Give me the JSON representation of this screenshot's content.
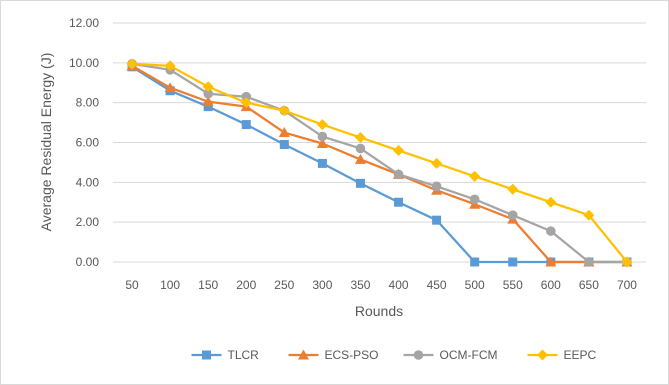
{
  "chart_data": {
    "type": "line",
    "title": "",
    "xlabel": "Rounds",
    "ylabel": "Average Residual Energy (J)",
    "categories": [
      "50",
      "100",
      "150",
      "200",
      "250",
      "300",
      "350",
      "400",
      "450",
      "500",
      "550",
      "600",
      "650",
      "700"
    ],
    "y_ticks": [
      "0.00",
      "2.00",
      "4.00",
      "6.00",
      "8.00",
      "10.00",
      "12.00"
    ],
    "ylim": [
      0,
      12
    ],
    "grid": true,
    "legend_position": "bottom",
    "series": [
      {
        "name": "TLCR",
        "color": "#5b9bd5",
        "marker": "square",
        "values": [
          9.8,
          8.6,
          7.8,
          6.9,
          5.9,
          4.95,
          3.95,
          3.0,
          2.1,
          0.0,
          0.0,
          0.0,
          0.0,
          0.0
        ]
      },
      {
        "name": "ECS-PSO",
        "color": "#ed7d31",
        "marker": "triangle",
        "values": [
          9.85,
          8.75,
          8.05,
          7.8,
          6.5,
          5.95,
          5.15,
          4.4,
          3.6,
          2.9,
          2.15,
          0.0,
          0.0,
          0.0
        ]
      },
      {
        "name": "OCM-FCM",
        "color": "#a5a5a5",
        "marker": "circle",
        "values": [
          9.95,
          9.65,
          8.45,
          8.3,
          7.6,
          6.3,
          5.7,
          4.4,
          3.8,
          3.15,
          2.35,
          1.55,
          0.0,
          0.0
        ]
      },
      {
        "name": "EEPC",
        "color": "#ffc000",
        "marker": "diamond",
        "values": [
          9.95,
          9.85,
          8.8,
          8.0,
          7.6,
          6.9,
          6.25,
          5.6,
          4.95,
          4.3,
          3.65,
          3.0,
          2.35,
          0.0
        ]
      }
    ]
  }
}
